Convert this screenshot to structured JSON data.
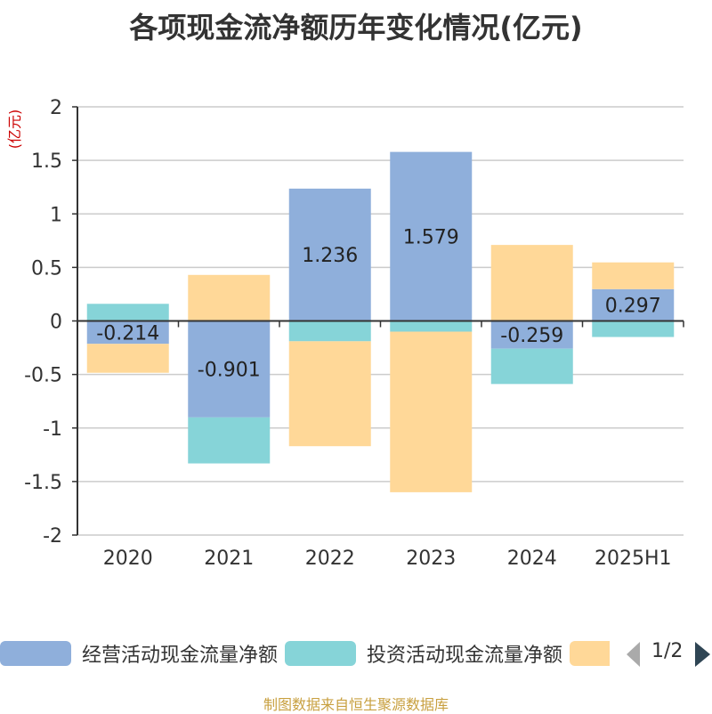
{
  "title": "各项现金流净额历年变化情况(亿元)",
  "source": "制图数据来自恒生聚源数据库",
  "legend": {
    "items": [
      {
        "label": "经营活动现金流量净额",
        "color": "#8fafdb"
      },
      {
        "label": "投资活动现金流量净额",
        "color": "#86d4d8"
      },
      {
        "label": "",
        "color": "#ffd898"
      }
    ],
    "page": "1/2"
  },
  "chart_data": {
    "type": "bar",
    "stacked": true,
    "categories": [
      "2020",
      "2021",
      "2022",
      "2023",
      "2024",
      "2025H1"
    ],
    "ylabel": "(亿元)",
    "ylim": [
      -2,
      2
    ],
    "yticks": [
      2,
      1.5,
      1,
      0.5,
      0,
      -0.5,
      -1,
      -1.5,
      -2
    ],
    "grid": true,
    "legend_position": "bottom",
    "series": [
      {
        "name": "经营活动现金流量净额",
        "color": "#8fafdb",
        "values": [
          -0.214,
          -0.901,
          1.236,
          1.579,
          -0.259,
          0.297
        ],
        "labels": [
          "-0.214",
          "-0.901",
          "1.236",
          "1.579",
          "-0.259",
          "0.297"
        ]
      },
      {
        "name": "投资活动现金流量净额",
        "color": "#86d4d8",
        "values": [
          0.16,
          -0.43,
          -0.19,
          -0.1,
          -0.33,
          -0.15
        ]
      },
      {
        "name": "",
        "color": "#ffd898",
        "values": [
          -0.27,
          0.43,
          -0.98,
          -1.5,
          0.71,
          0.25
        ]
      }
    ]
  }
}
